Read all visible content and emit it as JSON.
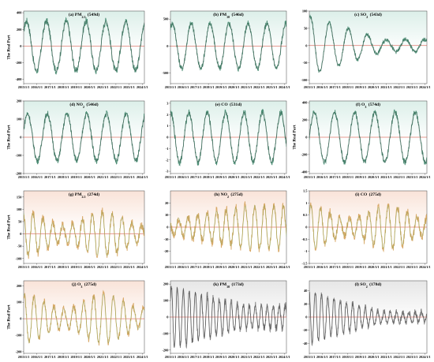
{
  "x_tick_labels": [
    "2015/1/1",
    "2016/1/1",
    "2017/1/1",
    "2018/1/1",
    "2019/1/1",
    "2020/1/1",
    "2021/1/1",
    "2022/1/1",
    "2023/1/1",
    "2024/1/1"
  ],
  "chart_data": [
    {
      "type": "line",
      "label_prefix": "(a)",
      "species": "PM",
      "sub": "2.5",
      "period": "(549d)",
      "ylabel": "The Real Part",
      "yticks": [
        -400,
        -200,
        0,
        200,
        400
      ],
      "ylim": [
        -450,
        420
      ],
      "mode": "steady",
      "amplitude": 300,
      "period_days": 549,
      "phase": 0.1,
      "noise": 45,
      "x_range": [
        "2015-01-01",
        "2024-03-01"
      ],
      "colors": {
        "bg": "#dcefe9",
        "line": "#2f7a5e",
        "fit": "#3a3a3a",
        "zero": "#d23a2a"
      }
    },
    {
      "type": "line",
      "label_prefix": "(b)",
      "species": "PM",
      "sub": "10",
      "period": "(546d)",
      "ylabel": "",
      "yticks": [
        -500,
        0,
        500
      ],
      "ylim": [
        -700,
        650
      ],
      "mode": "steady",
      "amplitude": 420,
      "period_days": 546,
      "phase": 0.15,
      "noise": 60,
      "x_range": [
        "2015-01-01",
        "2024-03-01"
      ],
      "colors": {
        "bg": "#dcefe9",
        "line": "#2f7a5e",
        "fit": "#3a3a3a",
        "zero": "#d23a2a"
      }
    },
    {
      "type": "line",
      "label_prefix": "(c)",
      "species": "SO",
      "sub": "2",
      "period": "(543d)",
      "ylabel": "",
      "yticks": [
        -100,
        -50,
        0,
        50,
        100
      ],
      "ylim": [
        -110,
        100
      ],
      "mode": "decay",
      "amplitude": 85,
      "amplitude_end": 18,
      "period_days": 543,
      "phase": 0.2,
      "noise": 6,
      "x_range": [
        "2015-01-01",
        "2024-03-01"
      ],
      "colors": {
        "bg": "#dcefe9",
        "line": "#2f7a5e",
        "fit": "#3a3a3a",
        "zero": "#d23a2a"
      }
    },
    {
      "type": "line",
      "label_prefix": "(d)",
      "species": "NO",
      "sub": "2",
      "period": "(546d)",
      "ylabel": "The Real Part",
      "yticks": [
        -200,
        -100,
        0,
        100,
        200
      ],
      "ylim": [
        -200,
        200
      ],
      "mode": "steady",
      "amplitude": 130,
      "period_days": 546,
      "phase": 0.05,
      "noise": 18,
      "x_range": [
        "2015-01-01",
        "2024-03-01"
      ],
      "colors": {
        "bg": "#dcefe9",
        "line": "#2f7a5e",
        "fit": "#3a3a3a",
        "zero": "#d23a2a"
      }
    },
    {
      "type": "line",
      "label_prefix": "(e)",
      "species": "CO",
      "sub": "",
      "period": "(531d)",
      "ylabel": "",
      "yticks": [
        -3,
        -2,
        -1,
        0,
        1,
        2,
        3
      ],
      "ylim": [
        -3.2,
        3.2
      ],
      "mode": "steady",
      "amplitude": 2.2,
      "period_days": 531,
      "phase": 0.25,
      "noise": 0.3,
      "x_range": [
        "2015-01-01",
        "2024-03-01"
      ],
      "colors": {
        "bg": "#dcefe9",
        "line": "#2f7a5e",
        "fit": "#3a3a3a",
        "zero": "#d23a2a"
      }
    },
    {
      "type": "line",
      "label_prefix": "(f)",
      "species": "O",
      "sub": "3",
      "period": "(574d)",
      "ylabel": "The Real Part",
      "yticks": [
        -400,
        -200,
        0,
        200,
        400
      ],
      "ylim": [
        -420,
        420
      ],
      "mode": "steady",
      "amplitude": 290,
      "period_days": 574,
      "phase": 0.0,
      "noise": 35,
      "x_range": [
        "2015-01-01",
        "2024-03-01"
      ],
      "colors": {
        "bg": "#dcefe9",
        "line": "#2f7a5e",
        "fit": "#3a3a3a",
        "zero": "#d23a2a"
      }
    },
    {
      "type": "line",
      "label_prefix": "(g)",
      "species": "PM",
      "sub": "2.5",
      "period": "(274d)",
      "ylabel": "The Real Part",
      "yticks": [
        -100,
        -50,
        0,
        50,
        100,
        150
      ],
      "ylim": [
        -120,
        175
      ],
      "mode": "beat",
      "amplitude": 90,
      "period_days": 274,
      "phase": 0.3,
      "noise": 18,
      "x_range": [
        "2015-01-01",
        "2024-03-01"
      ],
      "colors": {
        "bg": "#f9e3d8",
        "line": "#d19a4e",
        "fit": "#6aa84f",
        "zero": "#d23a2a"
      }
    },
    {
      "type": "line",
      "label_prefix": "(h)",
      "species": "NO",
      "sub": "2",
      "period": "(275d)",
      "ylabel": "",
      "yticks": [
        -20,
        -10,
        0,
        10,
        20
      ],
      "ylim": [
        -30,
        30
      ],
      "mode": "grow",
      "amplitude": 18,
      "period_days": 275,
      "phase": 0.4,
      "noise": 4,
      "x_range": [
        "2015-01-01",
        "2024-03-01"
      ],
      "colors": {
        "bg": "#f9e3d8",
        "line": "#d19a4e",
        "fit": "#6aa84f",
        "zero": "#d23a2a"
      }
    },
    {
      "type": "line",
      "label_prefix": "(i)",
      "species": "CO",
      "sub": "",
      "period": "(275d)",
      "ylabel": "",
      "yticks": [
        -1.5,
        -1.0,
        -0.5,
        0.0,
        0.5,
        1.0,
        1.5
      ],
      "ylim": [
        -1.5,
        1.5
      ],
      "mode": "beat",
      "amplitude": 0.9,
      "period_days": 275,
      "phase": 0.1,
      "noise": 0.18,
      "x_range": [
        "2015-01-01",
        "2024-03-01"
      ],
      "colors": {
        "bg": "#f9e3d8",
        "line": "#d19a4e",
        "fit": "#6aa84f",
        "zero": "#d23a2a"
      }
    },
    {
      "type": "line",
      "label_prefix": "(j)",
      "species": "O",
      "sub": "3",
      "period": "(275d)",
      "ylabel": "The Real Part",
      "yticks": [
        -200,
        -100,
        0,
        100,
        200
      ],
      "ylim": [
        -210,
        230
      ],
      "mode": "beat",
      "amplitude": 150,
      "period_days": 275,
      "phase": 0.2,
      "noise": 22,
      "x_range": [
        "2015-01-01",
        "2024-03-01"
      ],
      "colors": {
        "bg": "#f9e3d8",
        "line": "#d19a4e",
        "fit": "#6aa84f",
        "zero": "#d23a2a"
      }
    },
    {
      "type": "line",
      "label_prefix": "(k)",
      "species": "PM",
      "sub": "10",
      "period": "(173d)",
      "ylabel": "",
      "yticks": [
        -200,
        -100,
        0,
        100,
        200
      ],
      "ylim": [
        -220,
        220
      ],
      "mode": "decay",
      "amplitude": 190,
      "amplitude_end": 70,
      "period_days": 173,
      "phase": 0.1,
      "noise": 25,
      "x_range": [
        "2015-01-01",
        "2024-03-01"
      ],
      "colors": {
        "bg": "#e6e6e6",
        "line": "#6b6b6b",
        "fit": "#2b2b2b",
        "zero": "#d23a2a"
      }
    },
    {
      "type": "line",
      "label_prefix": "(l)",
      "species": "SO",
      "sub": "2",
      "period": "(178d)",
      "ylabel": "",
      "yticks": [
        -40,
        -20,
        0,
        20,
        40
      ],
      "ylim": [
        -55,
        55
      ],
      "mode": "decay",
      "amplitude": 40,
      "amplitude_end": 8,
      "period_days": 178,
      "phase": 0.3,
      "noise": 5,
      "x_range": [
        "2015-01-01",
        "2024-03-01"
      ],
      "colors": {
        "bg": "#e6e6e6",
        "line": "#6b6b6b",
        "fit": "#2b2b2b",
        "zero": "#d23a2a"
      }
    }
  ]
}
